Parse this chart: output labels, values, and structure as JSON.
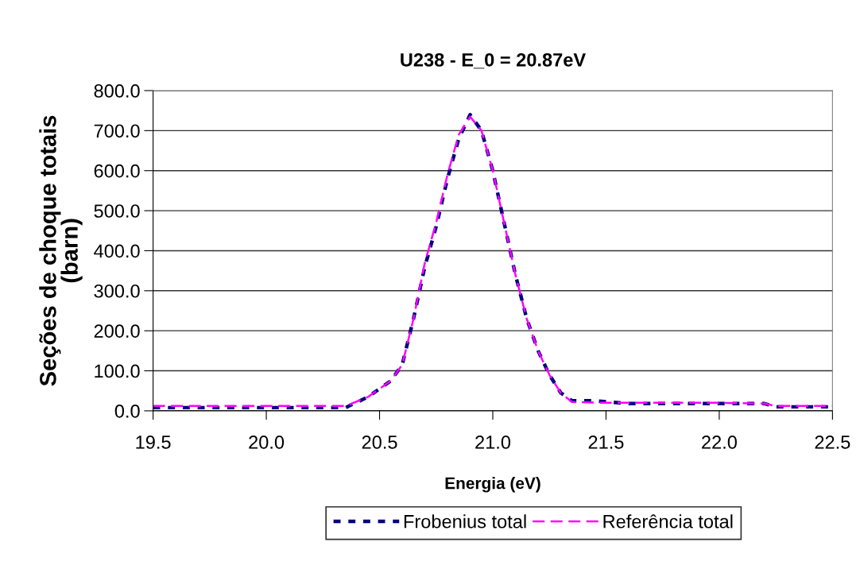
{
  "chart_data": {
    "type": "line",
    "title": "U238 - E_0 = 20.87eV",
    "xlabel": "Energia (eV)",
    "ylabel": "Seções de choque totais\n(barn)",
    "xlim": [
      19.5,
      22.5
    ],
    "xticks": [
      {
        "value": 19.5,
        "label": "19.5"
      },
      {
        "value": 20.0,
        "label": "20.0"
      },
      {
        "value": 20.5,
        "label": "20.5"
      },
      {
        "value": 21.0,
        "label": "21.0"
      },
      {
        "value": 21.5,
        "label": "21.5"
      },
      {
        "value": 22.0,
        "label": "22.0"
      },
      {
        "value": 22.5,
        "label": "22.5"
      }
    ],
    "ylim": [
      0,
      800
    ],
    "yticks": [
      {
        "value": 0,
        "label": "0.0"
      },
      {
        "value": 100,
        "label": "100.0"
      },
      {
        "value": 200,
        "label": "200.0"
      },
      {
        "value": 300,
        "label": "300.0"
      },
      {
        "value": 400,
        "label": "400.0"
      },
      {
        "value": 500,
        "label": "500.0"
      },
      {
        "value": 600,
        "label": "600.0"
      },
      {
        "value": 700,
        "label": "700.0"
      },
      {
        "value": 800,
        "label": "800.0"
      }
    ],
    "grid": "y",
    "legend": "bottom",
    "marker": "none",
    "series": [
      {
        "name": "Frobenius total",
        "color": "#000080",
        "line_style": "dotted",
        "x": [
          19.5,
          20.0,
          20.35,
          20.45,
          20.55,
          20.6,
          20.65,
          20.7,
          20.75,
          20.8,
          20.85,
          20.9,
          20.95,
          21.0,
          21.05,
          21.1,
          21.15,
          21.2,
          21.25,
          21.3,
          21.35,
          21.45,
          21.6,
          22.0,
          22.2,
          22.25,
          22.5
        ],
        "values": [
          8,
          8,
          8,
          35,
          75,
          115,
          230,
          360,
          460,
          580,
          680,
          740,
          700,
          600,
          470,
          340,
          230,
          150,
          90,
          45,
          25,
          25,
          18,
          18,
          18,
          10,
          10
        ]
      },
      {
        "name": "Referência total",
        "color": "#ff00ff",
        "line_style": "dashed",
        "x": [
          19.5,
          20.0,
          20.35,
          20.45,
          20.55,
          20.6,
          20.65,
          20.7,
          20.75,
          20.8,
          20.85,
          20.9,
          20.95,
          21.0,
          21.05,
          21.1,
          21.15,
          21.2,
          21.25,
          21.3,
          21.35,
          21.5,
          22.0,
          22.2,
          22.25,
          22.5
        ],
        "values": [
          12,
          12,
          12,
          35,
          75,
          115,
          230,
          370,
          470,
          590,
          690,
          735,
          700,
          600,
          470,
          340,
          230,
          150,
          90,
          45,
          22,
          20,
          20,
          18,
          12,
          12
        ]
      }
    ]
  }
}
